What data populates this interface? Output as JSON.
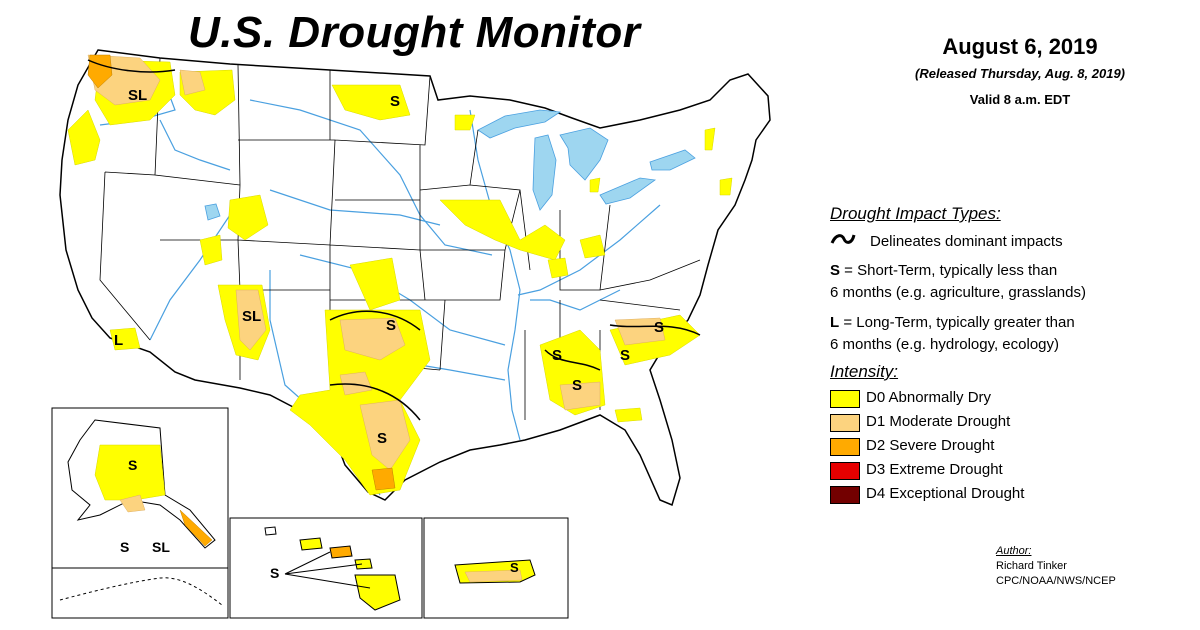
{
  "header": {
    "title": "U.S. Drought Monitor",
    "date": "August 6, 2019",
    "released": "(Released Thursday, Aug. 8, 2019)",
    "valid": "Valid 8 a.m. EDT"
  },
  "map_labels": {
    "sl_northwest": "SL",
    "s_north_dakota": "S",
    "l_california": "L",
    "sl_arizona": "SL",
    "s_oklahoma": "S",
    "s_texas": "S",
    "s_mississippi": "S",
    "s_alabama": "S",
    "s_georgia": "S",
    "s_carolina": "S",
    "s_alaska": "S",
    "s_alaska_south": "S",
    "sl_alaska": "SL",
    "s_hawaii": "S",
    "s_puerto_rico": "S"
  },
  "legend": {
    "impact_heading": "Drought Impact Types:",
    "delineates": "Delineates dominant impacts",
    "short_term_letter": "S",
    "short_term_line1": " = Short-Term, typically less than",
    "short_term_line2": "6 months (e.g. agriculture, grasslands)",
    "long_term_letter": "L",
    "long_term_line1": " = Long-Term, typically greater than",
    "long_term_line2": "6 months (e.g. hydrology, ecology)",
    "intensity_heading": "Intensity:",
    "categories": [
      {
        "label": "D0 Abnormally Dry",
        "color": "#ffff00"
      },
      {
        "label": "D1 Moderate Drought",
        "color": "#fcd37f"
      },
      {
        "label": "D2 Severe Drought",
        "color": "#ffaa00"
      },
      {
        "label": "D3 Extreme Drought",
        "color": "#e60000"
      },
      {
        "label": "D4 Exceptional Drought",
        "color": "#730000"
      }
    ]
  },
  "author": {
    "heading": "Author:",
    "name": "Richard Tinker",
    "org": "CPC/NOAA/NWS/NCEP"
  },
  "colors": {
    "water": "#9ed6f0",
    "d0": "#ffff00",
    "d1": "#fcd37f",
    "d2": "#ffaa00",
    "river": "#4aa0e0"
  }
}
